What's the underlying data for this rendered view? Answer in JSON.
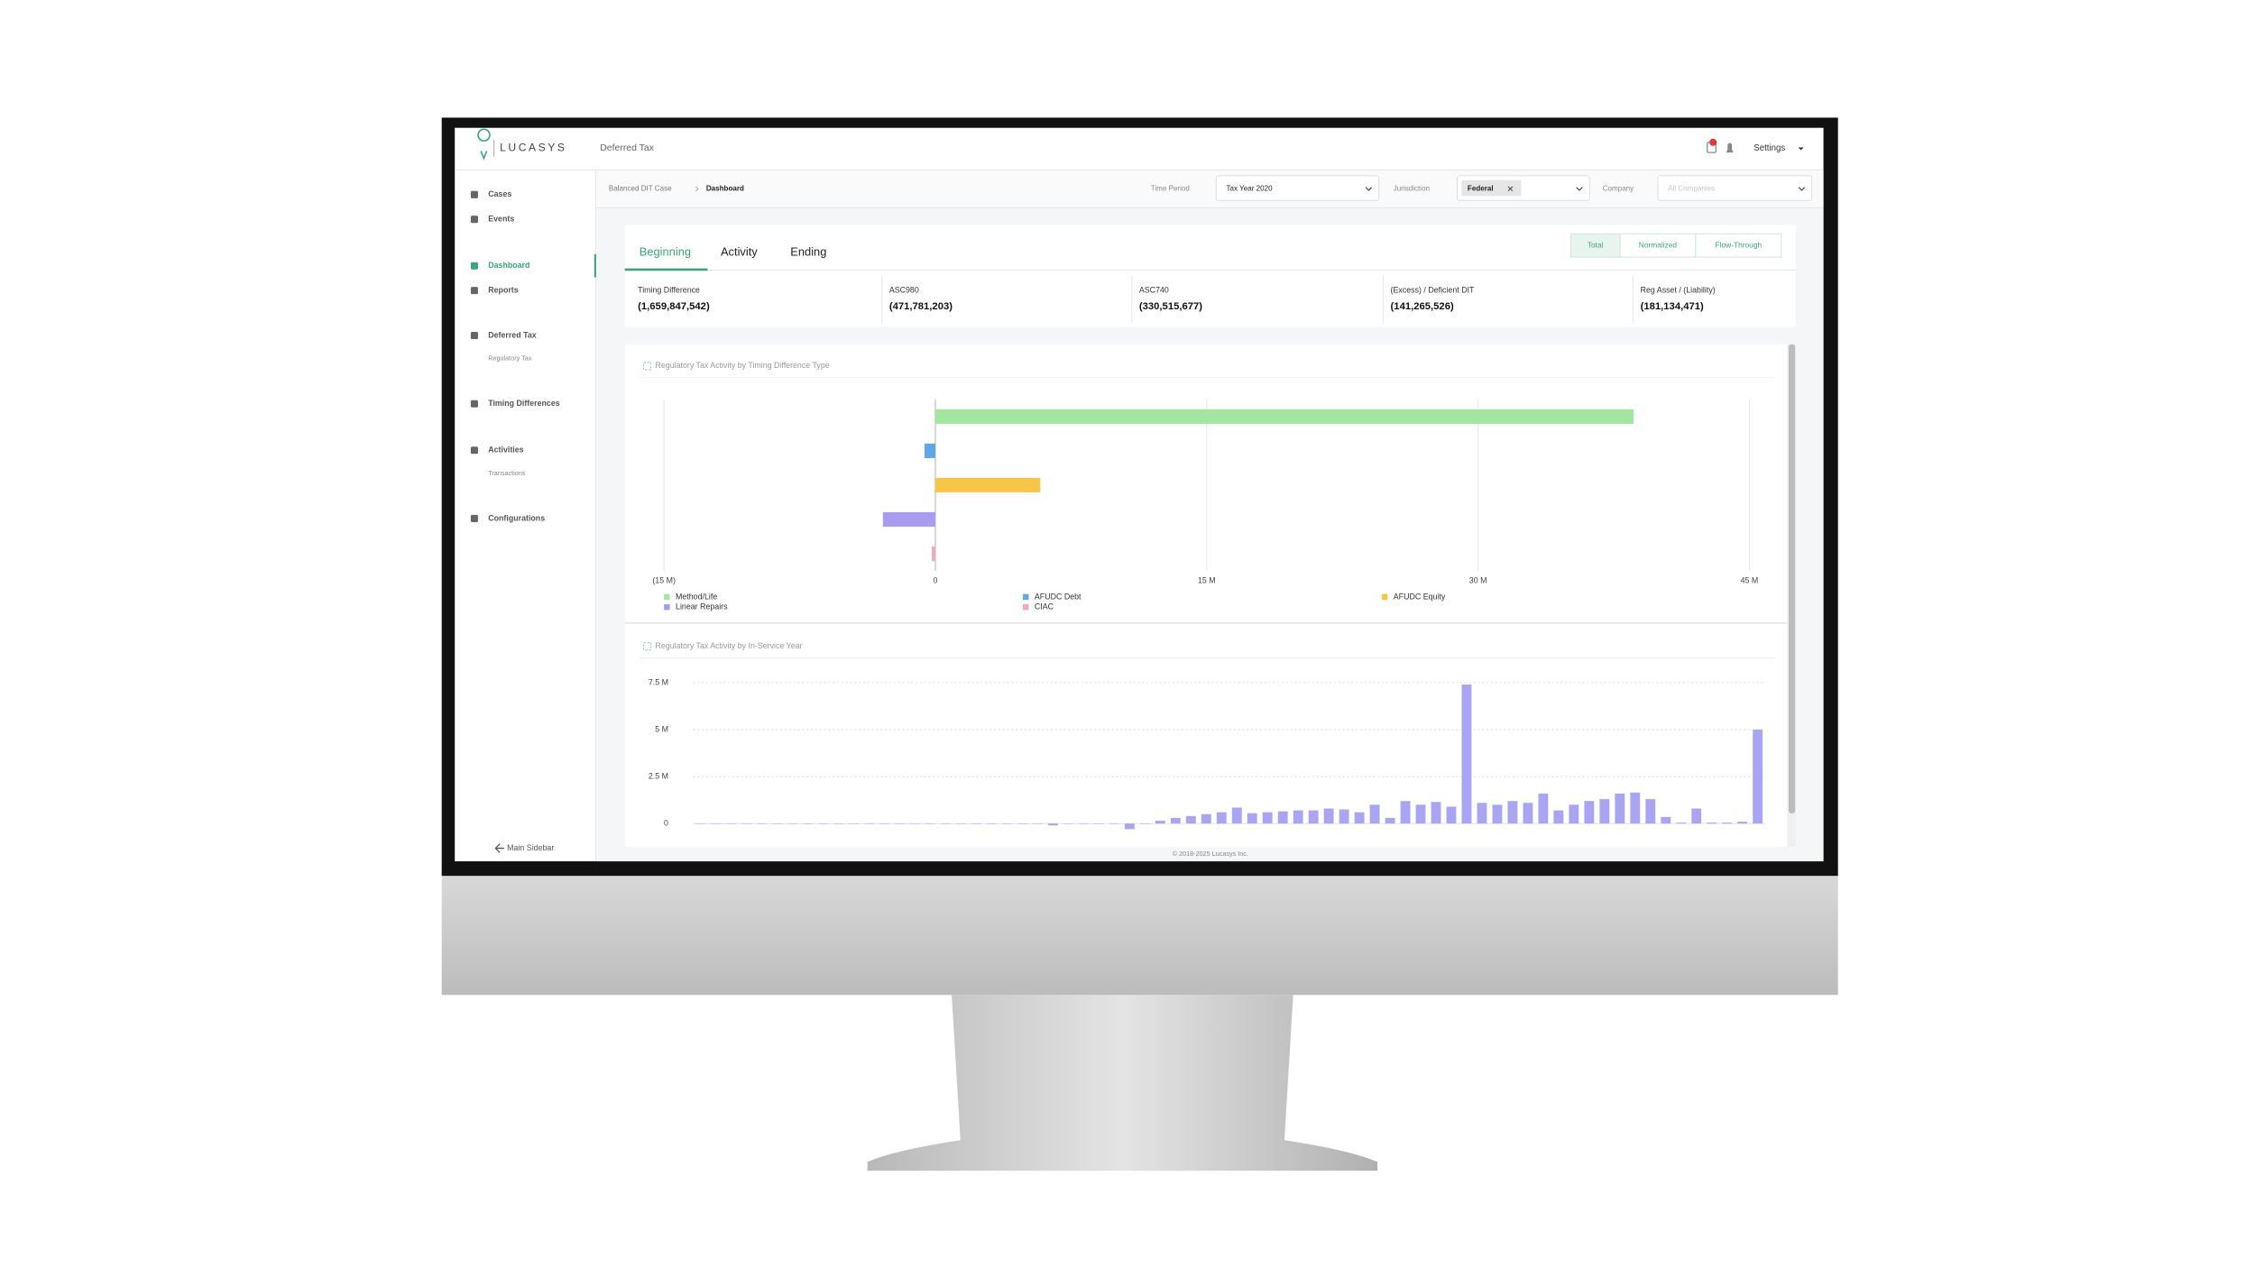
{
  "app": {
    "logo": "LUCASYS",
    "module": "Deferred Tax",
    "settings": "Settings"
  },
  "sidebar": {
    "items": [
      "Cases",
      "Events",
      "Dashboard",
      "Reports",
      "Deferred Tax",
      "Regulatory Tax",
      "Timing Differences",
      "Activities",
      "Transactions",
      "Configurations"
    ],
    "footer": "Main Sidebar"
  },
  "breadcrumb": [
    "Balanced DIT Case",
    "Dashboard"
  ],
  "filters": {
    "time_period_label": "Time Period",
    "time_period": "Tax Year 2020",
    "jurisdiction_label": "Jurisdiction",
    "jurisdiction": "Federal",
    "company_label": "Company",
    "company_placeholder": "All Companies"
  },
  "tabs": [
    "Beginning",
    "Activity",
    "Ending"
  ],
  "toggles": [
    "Total",
    "Normalized",
    "Flow-Through"
  ],
  "summary": [
    {
      "label": "Timing Difference",
      "value": "(1,659,847,542)"
    },
    {
      "label": "ASC980",
      "value": "(471,781,203)"
    },
    {
      "label": "ASC740",
      "value": "(330,515,677)"
    },
    {
      "label": "(Excess) / Deficient DIT",
      "value": "(141,265,526)"
    },
    {
      "label": "Reg Asset / (Liability)",
      "value": "(181,134,471)"
    }
  ],
  "chart_data": [
    {
      "type": "hbar",
      "title": "Regulatory Tax Activity by Timing Difference Type",
      "categories": [
        "Method/Life",
        "AFUDC Debt",
        "AFUDC Equity",
        "Linear Repairs",
        "CIAC"
      ],
      "values": [
        38.6,
        -0.6,
        5.8,
        -2.9,
        -0.2
      ],
      "colors": [
        "#a3e6a0",
        "#5ea8ea",
        "#f7c646",
        "#a99cf0",
        "#f2a9bb"
      ],
      "xlim": [
        -15,
        45
      ],
      "xticks": [
        {
          "value": -15,
          "label": "(15 M)"
        },
        0,
        {
          "value": 15,
          "label": "15 M"
        },
        {
          "value": 30,
          "label": "30 M"
        },
        {
          "value": 45,
          "label": "45 M"
        }
      ],
      "grid": true
    },
    {
      "type": "bar",
      "title": "Regulatory Tax Activity by In-Service Year",
      "values": [
        0,
        0,
        0,
        0,
        0,
        0,
        0,
        0,
        0,
        0,
        0,
        0,
        0,
        0,
        0,
        0,
        0,
        0,
        0,
        0,
        0,
        0,
        0,
        -0.1,
        0,
        0,
        0,
        0,
        -0.3,
        0,
        0.15,
        0.3,
        0.4,
        0.5,
        0.6,
        0.85,
        0.55,
        0.6,
        0.65,
        0.7,
        0.7,
        0.8,
        0.75,
        0.6,
        1.0,
        0.3,
        1.2,
        1.0,
        1.15,
        0.9,
        7.4,
        1.1,
        1.0,
        1.2,
        1.1,
        1.6,
        0.7,
        1.0,
        1.2,
        1.3,
        1.6,
        1.65,
        1.3,
        0.35,
        0.05,
        0.8,
        0.05,
        0.05,
        0.1,
        5.0
      ],
      "color": "#a9a5f2",
      "ylim": [
        0,
        7.5
      ],
      "yticks": [
        0,
        {
          "value": 2.5,
          "label": "2.5 M"
        },
        {
          "value": 5,
          "label": "5 M"
        },
        {
          "value": 7.5,
          "label": "7.5 M"
        }
      ],
      "grid": true
    }
  ],
  "footer": "© 2018-2025 Lucasys Inc."
}
